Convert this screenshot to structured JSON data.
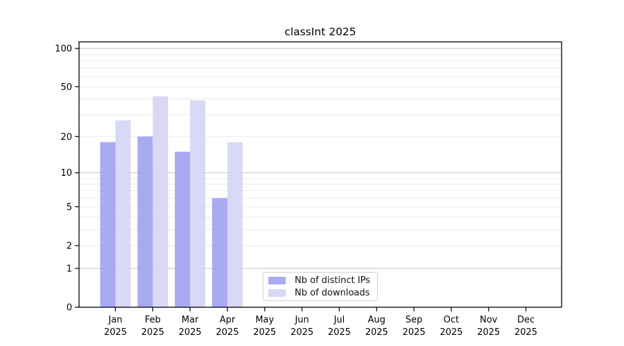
{
  "chart_data": {
    "type": "bar",
    "title": "classInt 2025",
    "year": "2025",
    "categories": [
      "Jan",
      "Feb",
      "Mar",
      "Apr",
      "May",
      "Jun",
      "Jul",
      "Aug",
      "Sep",
      "Oct",
      "Nov",
      "Dec"
    ],
    "series": [
      {
        "name": "Nb of distinct IPs",
        "color": "#9a9af2",
        "opacity": 0.85,
        "values": [
          18,
          20,
          15,
          6,
          null,
          null,
          null,
          null,
          null,
          null,
          null,
          null
        ]
      },
      {
        "name": "Nb of downloads",
        "color": "#d2d2f4",
        "opacity": 0.85,
        "values": [
          27,
          42,
          39,
          18,
          null,
          null,
          null,
          null,
          null,
          null,
          null,
          null
        ]
      }
    ],
    "xlabel": "",
    "ylabel": "",
    "yscale": "log10(value+1)",
    "yticks": [
      0,
      1,
      2,
      5,
      10,
      20,
      50,
      100
    ],
    "ylim": [
      0,
      113
    ],
    "grid": true,
    "gridlines": {
      "major": [
        1,
        10,
        100
      ],
      "minor": [
        2,
        3,
        4,
        5,
        6,
        7,
        8,
        9,
        20,
        30,
        40,
        50,
        60,
        70,
        80,
        90
      ]
    },
    "legend_position": "inside lower center",
    "colors": {
      "grid_major": "#c2c2c2",
      "grid_minor": "#eaeaea",
      "axis": "#000000",
      "background": "#ffffff"
    }
  }
}
